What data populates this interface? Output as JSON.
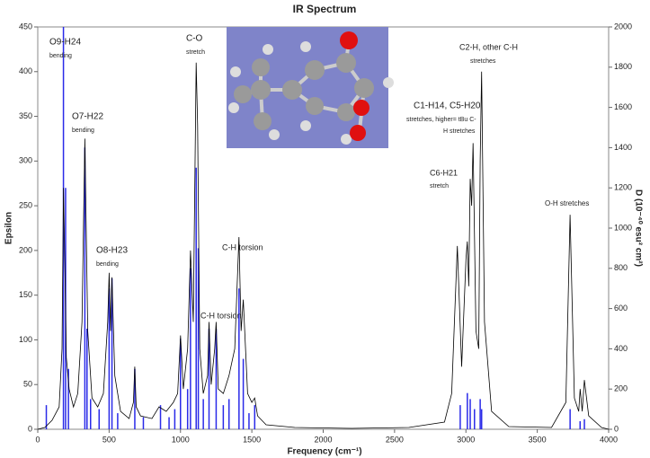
{
  "chart_data": {
    "type": "line",
    "title": "IR Spectrum",
    "x_label": "Frequency (cm⁻¹)",
    "y_label": "Epsilon",
    "y2_label": "D (10⁻⁴⁰ esu² cm²)",
    "xlim": [
      0,
      4000
    ],
    "xticks": [
      0,
      500,
      1000,
      1500,
      2000,
      2500,
      3000,
      3500,
      4000
    ],
    "ylim": [
      0,
      450
    ],
    "yticks": [
      0,
      50,
      100,
      150,
      200,
      250,
      300,
      350,
      400,
      450
    ],
    "y2lim": [
      0,
      2000
    ],
    "y2ticks": [
      0,
      200,
      400,
      600,
      800,
      1000,
      1200,
      1400,
      1600,
      1800,
      2000
    ],
    "grid": false,
    "series": [
      {
        "color": "#000000",
        "x": [
          0,
          50,
          100,
          150,
          170,
          180,
          190,
          200,
          220,
          250,
          280,
          310,
          330,
          350,
          380,
          420,
          460,
          490,
          500,
          510,
          520,
          540,
          580,
          640,
          670,
          680,
          690,
          720,
          800,
          850,
          900,
          950,
          980,
          1000,
          1020,
          1050,
          1070,
          1090,
          1110,
          1120,
          1135,
          1160,
          1190,
          1200,
          1215,
          1240,
          1250,
          1265,
          1300,
          1340,
          1380,
          1410,
          1425,
          1440,
          1470,
          1500,
          1520,
          1540,
          1600,
          1800,
          2200,
          2600,
          2850,
          2900,
          2940,
          2970,
          3000,
          3010,
          3020,
          3030,
          3040,
          3050,
          3070,
          3090,
          3100,
          3110,
          3130,
          3180,
          3300,
          3600,
          3700,
          3730,
          3760,
          3790,
          3800,
          3815,
          3830,
          3860,
          3950,
          4000
        ],
        "values": [
          0,
          2,
          10,
          25,
          90,
          270,
          180,
          80,
          45,
          25,
          40,
          120,
          325,
          110,
          35,
          25,
          40,
          120,
          175,
          110,
          170,
          60,
          20,
          12,
          30,
          70,
          25,
          15,
          12,
          25,
          20,
          30,
          40,
          105,
          45,
          90,
          200,
          120,
          410,
          340,
          90,
          40,
          60,
          120,
          50,
          90,
          120,
          45,
          40,
          60,
          90,
          215,
          110,
          145,
          40,
          30,
          35,
          15,
          5,
          2,
          1,
          2,
          8,
          40,
          205,
          70,
          190,
          210,
          160,
          280,
          250,
          320,
          110,
          90,
          300,
          400,
          120,
          20,
          3,
          2,
          30,
          240,
          35,
          20,
          45,
          20,
          55,
          15,
          2,
          0
        ]
      },
      {
        "color": "#2a2ae8",
        "axis": "y2",
        "x": [
          60,
          180,
          195,
          215,
          330,
          345,
          370,
          430,
          500,
          520,
          560,
          680,
          740,
          860,
          920,
          960,
          1000,
          1050,
          1070,
          1110,
          1125,
          1160,
          1200,
          1250,
          1300,
          1340,
          1410,
          1440,
          1480,
          1520,
          2960,
          3010,
          3030,
          3060,
          3100,
          3110,
          3730,
          3800,
          3830
        ],
        "values": [
          120,
          2000,
          1200,
          300,
          1400,
          500,
          150,
          100,
          700,
          750,
          80,
          300,
          60,
          120,
          60,
          100,
          450,
          200,
          800,
          1300,
          900,
          150,
          500,
          500,
          120,
          150,
          700,
          350,
          80,
          120,
          120,
          180,
          150,
          100,
          150,
          100,
          100,
          40,
          50
        ]
      }
    ],
    "annotations": [
      "O9-H24",
      "bending",
      "O7-H22",
      "bending",
      "O8-H23",
      "bending",
      "C-O",
      "stretch",
      "C-H torsion",
      "C-H torsion",
      "C2-H, other C-H",
      "stretches",
      "C1-H14, C5-H20",
      "stretches, higher= tBu C-",
      "H stretches",
      "C6-H21",
      "stretch",
      "O-H stretches"
    ]
  }
}
